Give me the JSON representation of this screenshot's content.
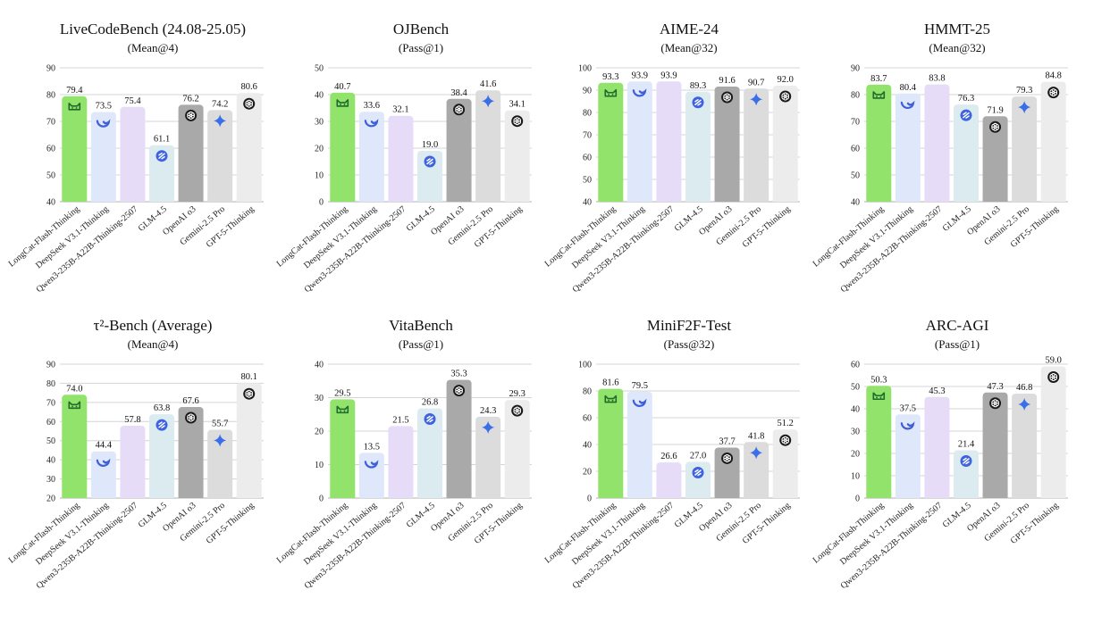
{
  "models": [
    {
      "name": "LongCat-Flash-Thinking",
      "color": "#92e36b",
      "icon": "longcat-icon"
    },
    {
      "name": "DeepSeek V3.1-Thinking",
      "color": "#dfe8fb",
      "icon": "deepseek-whale-icon"
    },
    {
      "name": "Qwen3-235B-A22B-Thinking-2507",
      "color": "#e6dcf8",
      "icon": "none"
    },
    {
      "name": "GLM-4.5",
      "color": "#dcebf0",
      "icon": "glm-icon"
    },
    {
      "name": "OpenAI o3",
      "color": "#a9a9a9",
      "icon": "openai-knot-icon"
    },
    {
      "name": "Gemini-2.5 Pro",
      "color": "#dcdcdc",
      "icon": "gemini-sparkle-icon"
    },
    {
      "name": "GPT-5-Thinking",
      "color": "#ececec",
      "icon": "openai-knot-icon"
    }
  ],
  "chart_data": [
    {
      "type": "bar",
      "title": "LiveCodeBench (24.08-25.05)",
      "subtitle": "(Mean@4)",
      "categories": [
        "LongCat-Flash-Thinking",
        "DeepSeek V3.1-Thinking",
        "Qwen3-235B-A22B-Thinking-2507",
        "GLM-4.5",
        "OpenAI o3",
        "Gemini-2.5 Pro",
        "GPT-5-Thinking"
      ],
      "values": [
        79.4,
        73.5,
        75.4,
        61.1,
        76.2,
        74.2,
        80.6
      ],
      "value_labels": [
        "79.4",
        "73.5",
        "75.4",
        "61.1",
        "76.2",
        "74.2",
        "80.6"
      ],
      "ylim": [
        40,
        90
      ],
      "yticks": [
        40,
        50,
        60,
        70,
        80,
        90
      ]
    },
    {
      "type": "bar",
      "title": "OJBench",
      "subtitle": "(Pass@1)",
      "categories": [
        "LongCat-Flash-Thinking",
        "DeepSeek V3.1-Thinking",
        "Qwen3-235B-A22B-Thinking-2507",
        "GLM-4.5",
        "OpenAI o3",
        "Gemini-2.5 Pro",
        "GPT-5-Thinking"
      ],
      "values": [
        40.7,
        33.6,
        32.1,
        19.0,
        38.4,
        41.6,
        34.1
      ],
      "value_labels": [
        "40.7",
        "33.6",
        "32.1",
        "19.0",
        "38.4",
        "41.6",
        "34.1"
      ],
      "ylim": [
        0,
        50
      ],
      "yticks": [
        0,
        10,
        20,
        30,
        40,
        50
      ]
    },
    {
      "type": "bar",
      "title": "AIME-24",
      "subtitle": "(Mean@32)",
      "categories": [
        "LongCat-Flash-Thinking",
        "DeepSeek V3.1-Thinking",
        "Qwen3-235B-A22B-Thinking-2507",
        "GLM-4.5",
        "OpenAI o3",
        "Gemini-2.5 Pro",
        "GPT-5-Thinking"
      ],
      "values": [
        93.3,
        93.9,
        93.9,
        89.3,
        91.6,
        90.7,
        92.0
      ],
      "value_labels": [
        "93.3",
        "93.9",
        "93.9",
        "89.3",
        "91.6",
        "90.7",
        "92.0"
      ],
      "ylim": [
        40,
        100
      ],
      "yticks": [
        40,
        50,
        60,
        70,
        80,
        90,
        100
      ]
    },
    {
      "type": "bar",
      "title": "HMMT-25",
      "subtitle": "(Mean@32)",
      "categories": [
        "LongCat-Flash-Thinking",
        "DeepSeek V3.1-Thinking",
        "Qwen3-235B-A22B-Thinking-2507",
        "GLM-4.5",
        "OpenAI o3",
        "Gemini-2.5 Pro",
        "GPT-5-Thinking"
      ],
      "values": [
        83.7,
        80.4,
        83.8,
        76.3,
        71.9,
        79.3,
        84.8
      ],
      "value_labels": [
        "83.7",
        "80.4",
        "83.8",
        "76.3",
        "71.9",
        "79.3",
        "84.8"
      ],
      "ylim": [
        40,
        90
      ],
      "yticks": [
        40,
        50,
        60,
        70,
        80,
        90
      ]
    },
    {
      "type": "bar",
      "title": "τ²-Bench (Average)",
      "subtitle": "(Mean@4)",
      "categories": [
        "LongCat-Flash-Thinking",
        "DeepSeek V3.1-Thinking",
        "Qwen3-235B-A22B-Thinking-2507",
        "GLM-4.5",
        "OpenAI o3",
        "Gemini-2.5 Pro",
        "GPT-5-Thinking"
      ],
      "values": [
        74.0,
        44.4,
        57.8,
        63.8,
        67.6,
        55.7,
        80.1
      ],
      "value_labels": [
        "74.0",
        "44.4",
        "57.8",
        "63.8",
        "67.6",
        "55.7",
        "80.1"
      ],
      "ylim": [
        20,
        90
      ],
      "yticks": [
        20,
        30,
        40,
        50,
        60,
        70,
        80,
        90
      ]
    },
    {
      "type": "bar",
      "title": "VitaBench",
      "subtitle": "(Pass@1)",
      "categories": [
        "LongCat-Flash-Thinking",
        "DeepSeek V3.1-Thinking",
        "Qwen3-235B-A22B-Thinking-2507",
        "GLM-4.5",
        "OpenAI o3",
        "Gemini-2.5 Pro",
        "GPT-5-Thinking"
      ],
      "values": [
        29.5,
        13.5,
        21.5,
        26.8,
        35.3,
        24.3,
        29.3
      ],
      "value_labels": [
        "29.5",
        "13.5",
        "21.5",
        "26.8",
        "35.3",
        "24.3",
        "29.3"
      ],
      "ylim": [
        0,
        40
      ],
      "yticks": [
        0,
        10,
        20,
        30,
        40
      ]
    },
    {
      "type": "bar",
      "title": "MiniF2F-Test",
      "subtitle": "(Pass@32)",
      "categories": [
        "LongCat-Flash-Thinking",
        "DeepSeek V3.1-Thinking",
        "Qwen3-235B-A22B-Thinking-2507",
        "GLM-4.5",
        "OpenAI o3",
        "Gemini-2.5 Pro",
        "GPT-5-Thinking"
      ],
      "values": [
        81.6,
        79.5,
        26.6,
        27.0,
        37.7,
        41.8,
        51.2
      ],
      "value_labels": [
        "81.6",
        "79.5",
        "26.6",
        "27.0",
        "37.7",
        "41.8",
        "51.2"
      ],
      "ylim": [
        0,
        100
      ],
      "yticks": [
        0,
        20,
        40,
        60,
        80,
        100
      ]
    },
    {
      "type": "bar",
      "title": "ARC-AGI",
      "subtitle": "(Pass@1)",
      "categories": [
        "LongCat-Flash-Thinking",
        "DeepSeek V3.1-Thinking",
        "Qwen3-235B-A22B-Thinking-2507",
        "GLM-4.5",
        "OpenAI o3",
        "Gemini-2.5 Pro",
        "GPT-5-Thinking"
      ],
      "values": [
        50.3,
        37.5,
        45.3,
        21.4,
        47.3,
        46.8,
        59.0
      ],
      "value_labels": [
        "50.3",
        "37.5",
        "45.3",
        "21.4",
        "47.3",
        "46.8",
        "59.0"
      ],
      "ylim": [
        0,
        60
      ],
      "yticks": [
        0,
        10,
        20,
        30,
        40,
        50,
        60
      ]
    }
  ]
}
